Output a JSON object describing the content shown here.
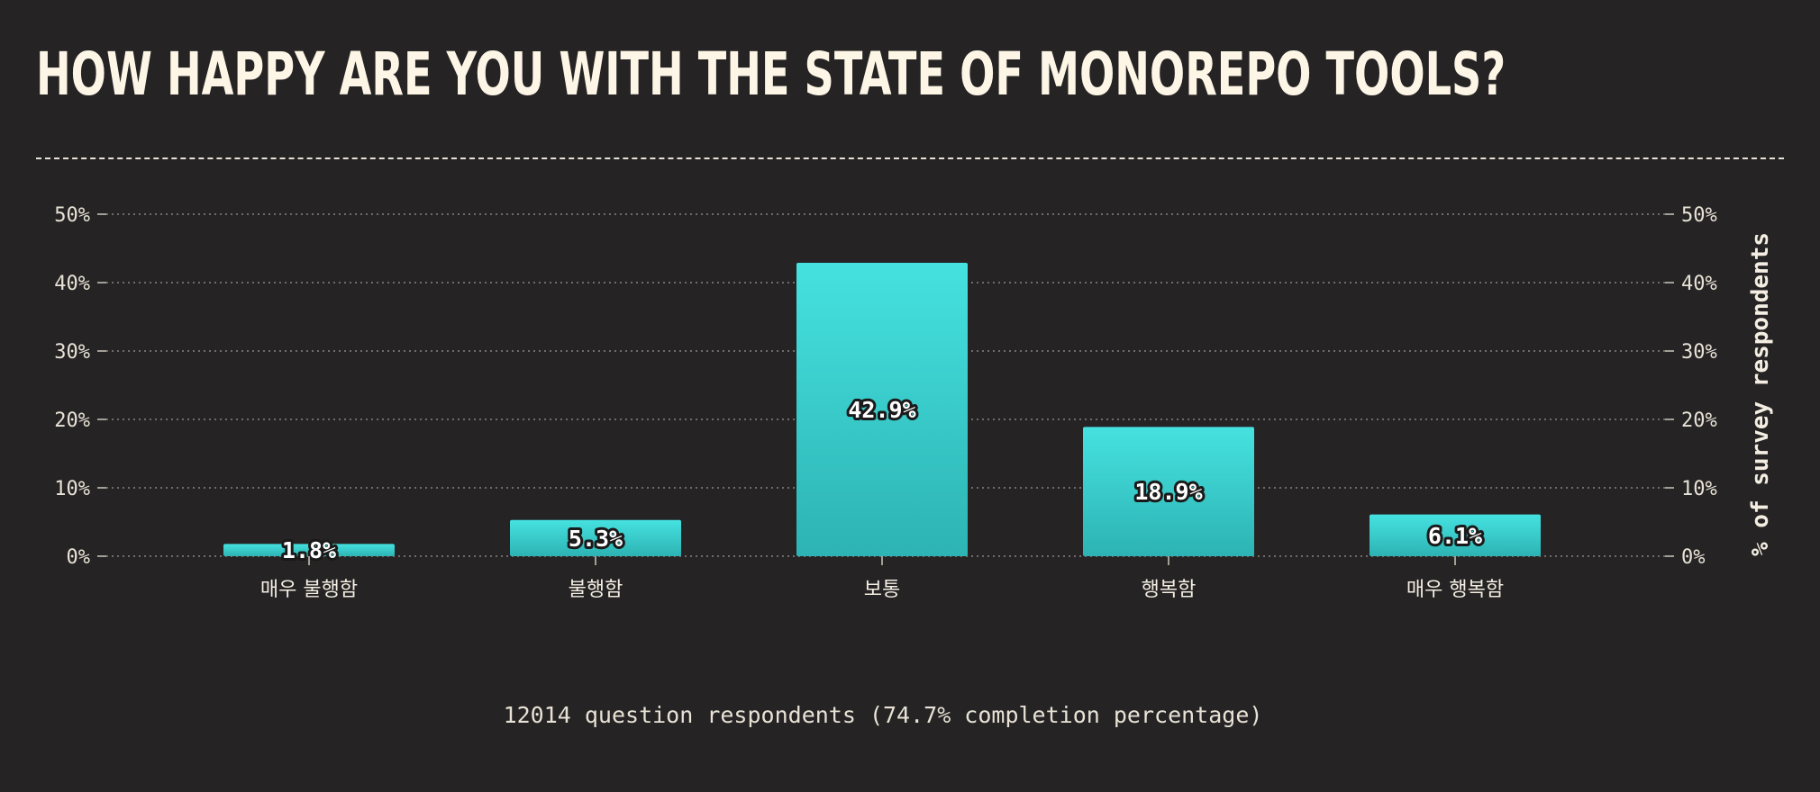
{
  "title": "HOW HAPPY ARE YOU WITH THE STATE OF MONOREPO TOOLS?",
  "footnote": "12014 question respondents (74.7% completion percentage)",
  "colors": {
    "background": "#252324",
    "bar_top": "#45e2e0",
    "bar_bottom": "#2db3b3",
    "text": "#fdf6e6"
  },
  "chart_data": {
    "type": "bar",
    "categories": [
      "매우 불행함",
      "불행함",
      "보통",
      "행복함",
      "매우 행복함"
    ],
    "values": [
      1.8,
      5.3,
      42.9,
      18.9,
      6.1
    ],
    "value_labels": [
      "1.8%",
      "5.3%",
      "42.9%",
      "18.9%",
      "6.1%"
    ],
    "xlabel": "",
    "ylabel": "% of survey respondents",
    "ylim": [
      0,
      50
    ],
    "yticks": [
      0,
      10,
      20,
      30,
      40,
      50
    ],
    "ytick_labels": [
      "0%",
      "10%",
      "20%",
      "30%",
      "40%",
      "50%"
    ],
    "grid": true,
    "secondary_y_axis": true
  }
}
